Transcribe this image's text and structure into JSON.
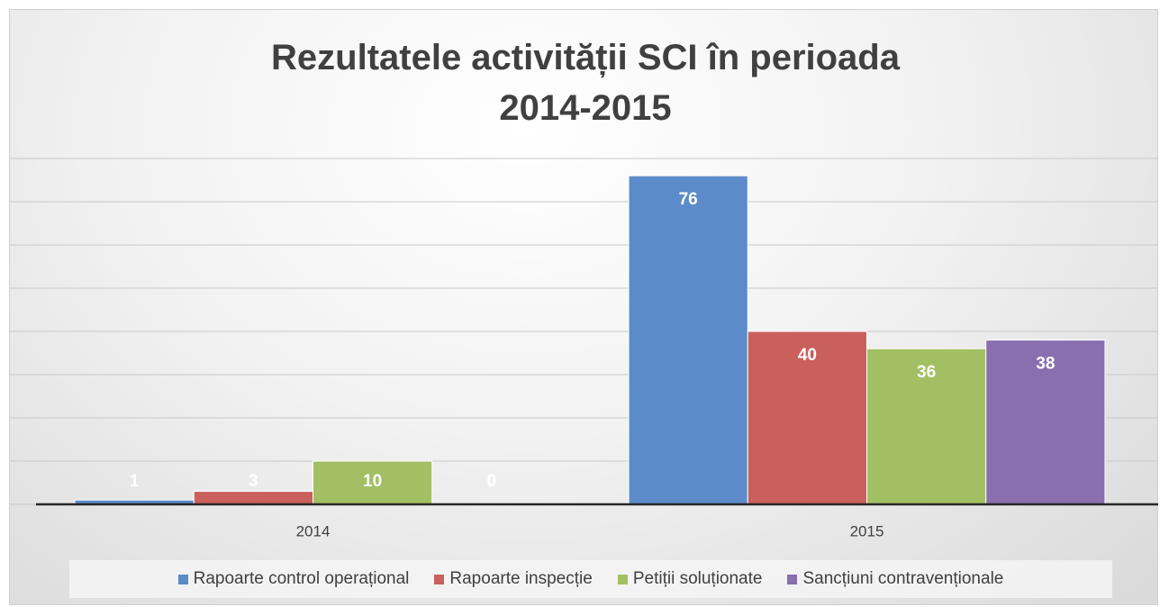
{
  "chart_data": {
    "type": "bar",
    "title": "Rezultatele activității SCI în perioada 2014-2015",
    "categories": [
      "2014",
      "2015"
    ],
    "series": [
      {
        "name": "Rapoarte control operațional",
        "color": "#5b8bc9",
        "values": [
          1,
          76
        ]
      },
      {
        "name": "Rapoarte inspecție",
        "color": "#c9605c",
        "values": [
          3,
          40
        ]
      },
      {
        "name": "Petiții soluționate",
        "color": "#a2c063",
        "values": [
          10,
          36
        ]
      },
      {
        "name": "Sancțiuni contravenționale",
        "color": "#8a6fae",
        "values": [
          0,
          38
        ]
      }
    ],
    "ylim": [
      0,
      80
    ],
    "yticks": [
      0,
      10,
      20,
      30,
      40,
      50,
      60,
      70,
      80
    ],
    "grid": true,
    "legend": "bottom"
  }
}
